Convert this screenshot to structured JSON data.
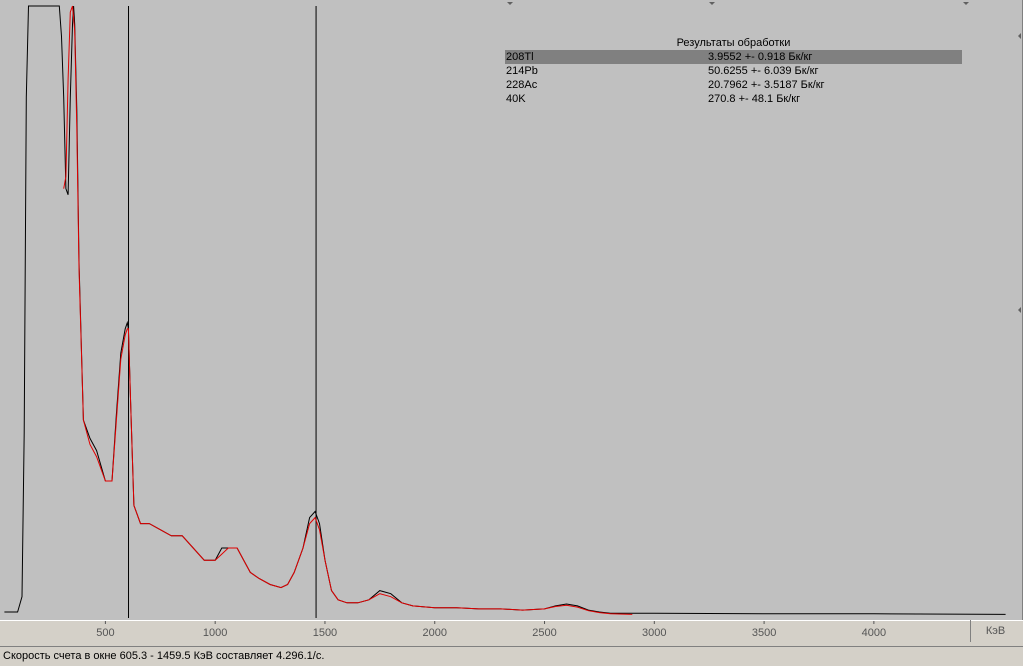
{
  "status": {
    "text": "Скорость счета в окне 605.3 - 1459.5 КэВ составляет 4.296.1/с."
  },
  "results": {
    "title": "Результаты обработки",
    "rows": [
      {
        "nuclide": "208Tl",
        "value": "3.9552 +- 0.918 Бк/кг",
        "selected": true
      },
      {
        "nuclide": "214Pb",
        "value": "50.6255 +- 6.039 Бк/кг",
        "selected": false
      },
      {
        "nuclide": "228Ac",
        "value": "20.7962 +- 3.5187 Бк/кг",
        "selected": false
      },
      {
        "nuclide": "40K",
        "value": "270.8 +- 48.1 Бк/кг",
        "selected": false
      }
    ]
  },
  "colors": {
    "background": "#c0c0c0",
    "measured": "#000000",
    "fit": "#e00000",
    "markers": "#000000"
  },
  "chart_data": {
    "type": "line",
    "unit_label": "КэВ",
    "xlim": [
      20,
      4620
    ],
    "ylim": [
      0,
      1.0
    ],
    "x_ticks": [
      500,
      1000,
      1500,
      2000,
      2500,
      3000,
      3500,
      4000
    ],
    "window_markers": [
      605.3,
      1459.5
    ],
    "series": [
      {
        "role": "measured",
        "x": [
          40,
          100,
          120,
          130,
          140,
          150,
          170,
          200,
          250,
          290,
          300,
          310,
          320,
          330,
          340,
          350,
          355,
          360,
          370,
          380,
          400,
          430,
          460,
          500,
          530,
          550,
          570,
          590,
          600,
          605,
          615,
          630,
          660,
          700,
          750,
          800,
          850,
          900,
          950,
          1000,
          1030,
          1060,
          1100,
          1130,
          1160,
          1200,
          1250,
          1300,
          1330,
          1360,
          1400,
          1430,
          1455,
          1475,
          1500,
          1530,
          1560,
          1600,
          1650,
          1700,
          1750,
          1800,
          1850,
          1900,
          2000,
          2100,
          2200,
          2300,
          2400,
          2500,
          2550,
          2600,
          2650,
          2700,
          2750,
          2800,
          2900,
          3000,
          3500,
          4000,
          4600
        ],
        "y": [
          0.005,
          0.005,
          0.03,
          0.3,
          0.85,
          1.0,
          1.0,
          1.0,
          1.0,
          1.0,
          0.95,
          0.85,
          0.7,
          0.69,
          0.85,
          0.97,
          1.0,
          0.97,
          0.83,
          0.58,
          0.32,
          0.29,
          0.27,
          0.22,
          0.22,
          0.33,
          0.43,
          0.47,
          0.48,
          0.47,
          0.35,
          0.18,
          0.15,
          0.15,
          0.14,
          0.13,
          0.13,
          0.11,
          0.09,
          0.09,
          0.11,
          0.11,
          0.11,
          0.09,
          0.07,
          0.06,
          0.05,
          0.045,
          0.05,
          0.07,
          0.11,
          0.16,
          0.17,
          0.15,
          0.09,
          0.04,
          0.025,
          0.02,
          0.02,
          0.025,
          0.04,
          0.035,
          0.02,
          0.015,
          0.012,
          0.012,
          0.01,
          0.01,
          0.008,
          0.01,
          0.015,
          0.018,
          0.015,
          0.008,
          0.005,
          0.003,
          0.003,
          0.003,
          0.002,
          0.002,
          0.001
        ]
      },
      {
        "role": "fit",
        "x": [
          310,
          320,
          330,
          340,
          350,
          360,
          370,
          380,
          400,
          430,
          460,
          500,
          530,
          550,
          570,
          590,
          600,
          605,
          615,
          630,
          660,
          700,
          750,
          800,
          850,
          900,
          950,
          1000,
          1030,
          1060,
          1100,
          1130,
          1160,
          1200,
          1250,
          1300,
          1330,
          1360,
          1400,
          1430,
          1455,
          1475,
          1500,
          1530,
          1560,
          1600,
          1650,
          1700,
          1750,
          1800,
          1850,
          1900,
          2000,
          2100,
          2200,
          2300,
          2400,
          2500,
          2550,
          2600,
          2650,
          2700,
          2750,
          2800,
          2900
        ],
        "y": [
          0.7,
          0.72,
          0.88,
          0.99,
          1.0,
          0.96,
          0.8,
          0.57,
          0.32,
          0.28,
          0.26,
          0.22,
          0.22,
          0.32,
          0.42,
          0.46,
          0.47,
          0.47,
          0.35,
          0.18,
          0.15,
          0.15,
          0.14,
          0.13,
          0.13,
          0.11,
          0.09,
          0.09,
          0.1,
          0.11,
          0.11,
          0.09,
          0.07,
          0.06,
          0.05,
          0.045,
          0.05,
          0.07,
          0.11,
          0.15,
          0.16,
          0.14,
          0.09,
          0.04,
          0.025,
          0.02,
          0.02,
          0.025,
          0.035,
          0.03,
          0.02,
          0.015,
          0.012,
          0.012,
          0.01,
          0.01,
          0.008,
          0.01,
          0.014,
          0.016,
          0.013,
          0.007,
          0.004,
          0.002,
          0.001
        ]
      }
    ]
  }
}
